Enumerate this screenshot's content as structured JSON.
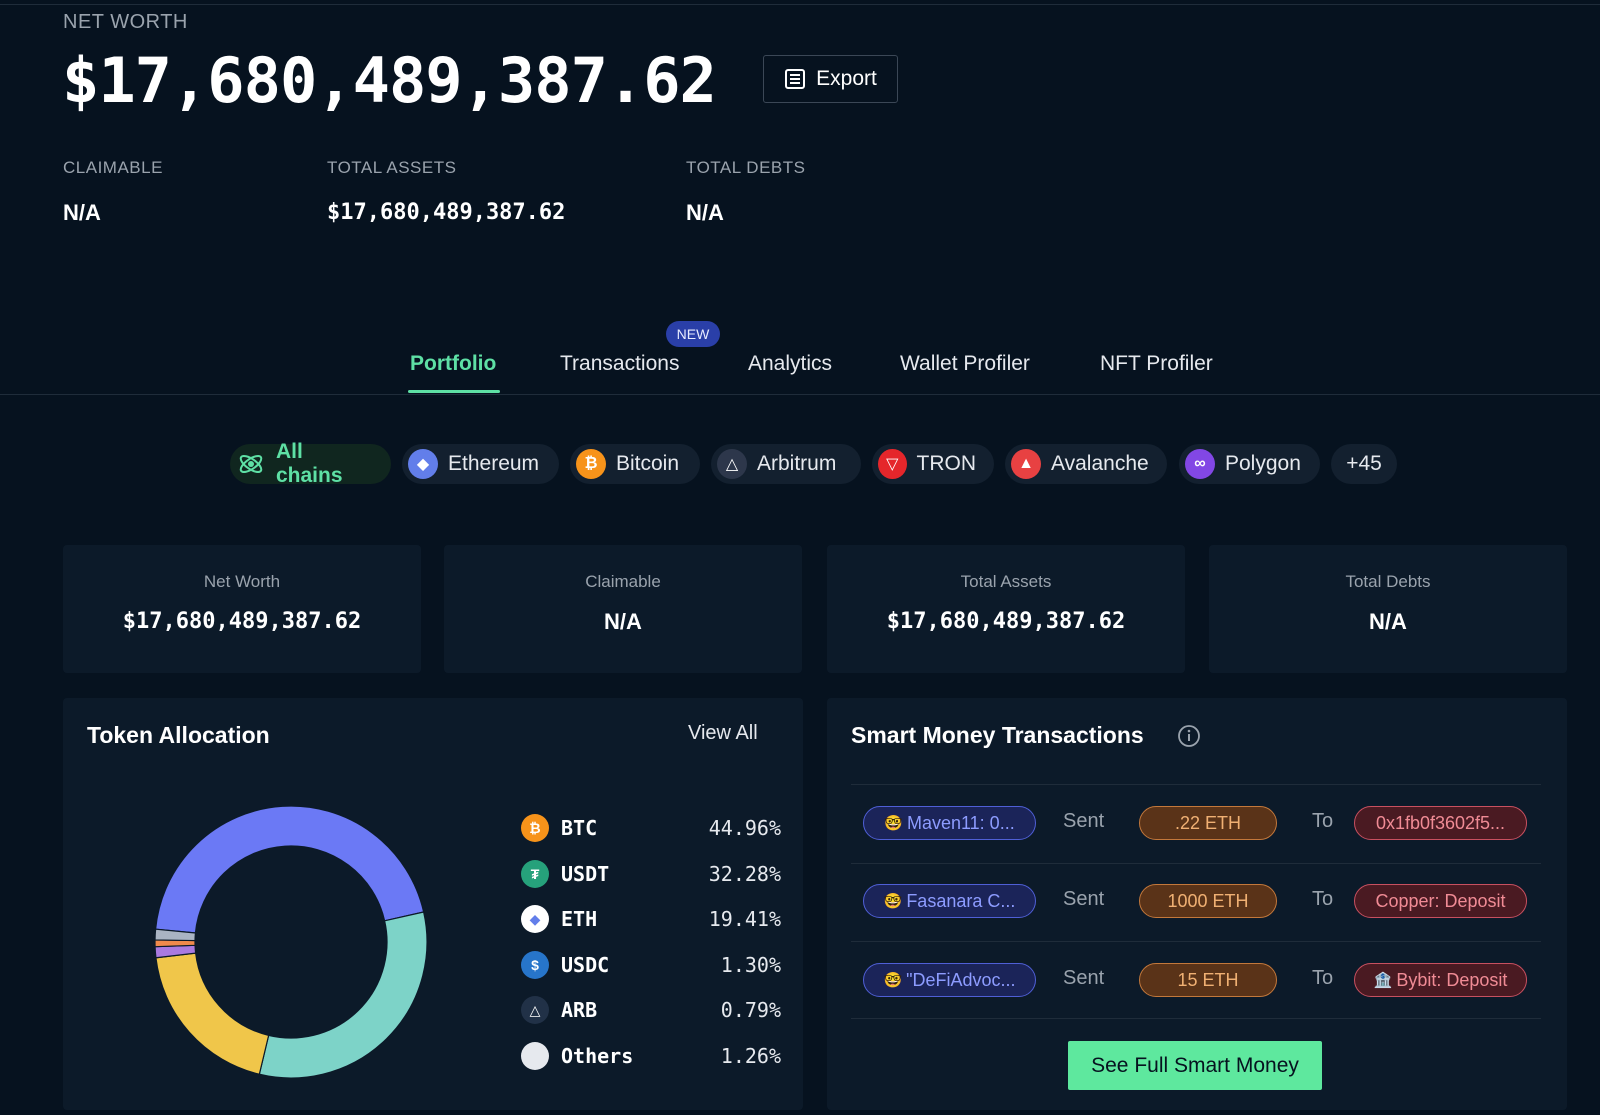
{
  "header": {
    "net_worth_label": "NET WORTH",
    "net_worth_value": "$17,680,489,387.62",
    "export_label": "Export"
  },
  "stats": {
    "claimable_label": "CLAIMABLE",
    "claimable_value": "N/A",
    "total_assets_label": "TOTAL ASSETS",
    "total_assets_value": "$17,680,489,387.62",
    "total_debts_label": "TOTAL DEBTS",
    "total_debts_value": "N/A"
  },
  "tabs": {
    "new_badge": "NEW",
    "items": [
      "Portfolio",
      "Transactions",
      "Analytics",
      "Wallet Profiler",
      "NFT Profiler"
    ],
    "active": "Portfolio"
  },
  "chains": {
    "items": [
      "All chains",
      "Ethereum",
      "Bitcoin",
      "Arbitrum",
      "TRON",
      "Avalanche",
      "Polygon"
    ],
    "more": "+45",
    "colors": {
      "Ethereum": "#627eea",
      "Bitcoin": "#f7931a",
      "Arbitrum": "#2d374b",
      "TRON": "#e5262b",
      "Avalanche": "#e84142",
      "Polygon": "#8247e5"
    }
  },
  "cards": [
    {
      "label": "Net Worth",
      "value": "$17,680,489,387.62"
    },
    {
      "label": "Claimable",
      "value": "N/A"
    },
    {
      "label": "Total Assets",
      "value": "$17,680,489,387.62"
    },
    {
      "label": "Total Debts",
      "value": "N/A"
    }
  ],
  "token_allocation": {
    "title": "Token Allocation",
    "view_all": "View All",
    "tokens": [
      {
        "symbol": "BTC",
        "pct": "44.96%",
        "value": 44.96,
        "color": "#6b79f5",
        "icon_color": "#f7931a"
      },
      {
        "symbol": "USDT",
        "pct": "32.28%",
        "value": 32.28,
        "color": "#7dd3c8",
        "icon_color": "#26a17b"
      },
      {
        "symbol": "ETH",
        "pct": "19.41%",
        "value": 19.41,
        "color": "#f0c64a",
        "icon_color": "#ffffff"
      },
      {
        "symbol": "USDC",
        "pct": "1.30%",
        "value": 1.3,
        "color": "#a97ae0",
        "icon_color": "#2775ca"
      },
      {
        "symbol": "ARB",
        "pct": "0.79%",
        "value": 0.79,
        "color": "#f08a4b",
        "icon_color": "#213147"
      },
      {
        "symbol": "Others",
        "pct": "1.26%",
        "value": 1.26,
        "color": "#aab4c3",
        "icon_color": "#e6e9ee"
      }
    ]
  },
  "smart_money": {
    "title": "Smart Money Transactions",
    "sent_word": "Sent",
    "to_word": "To",
    "rows": [
      {
        "from": "Maven11: 0...",
        "amount": ".22 ETH",
        "to": "0x1fb0f3602f5..."
      },
      {
        "from": "Fasanara C...",
        "amount": "1000 ETH",
        "to": "Copper: Deposit"
      },
      {
        "from": "\"DeFiAdvoc...",
        "amount": "15 ETH",
        "to": "Bybit: Deposit"
      }
    ],
    "cta": "See Full Smart Money"
  }
}
